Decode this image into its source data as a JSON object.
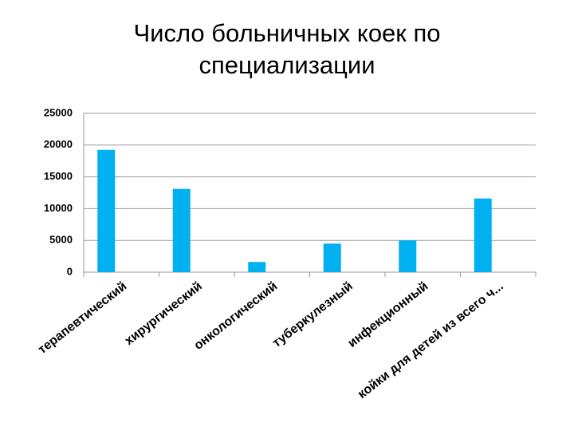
{
  "chart_data": {
    "type": "bar",
    "title": "Число больничных коек по специализации",
    "categories": [
      "терапевтический",
      "хирургический",
      "онкологический",
      "туберкулезный",
      "инфекционный",
      "койки для детей из всего ч..."
    ],
    "values": [
      19250,
      13100,
      1600,
      4500,
      5000,
      11600
    ],
    "color": "#00b0f0",
    "ylim": [
      0,
      25000
    ],
    "yticks": [
      0,
      5000,
      10000,
      15000,
      20000,
      25000
    ],
    "grid": true
  }
}
